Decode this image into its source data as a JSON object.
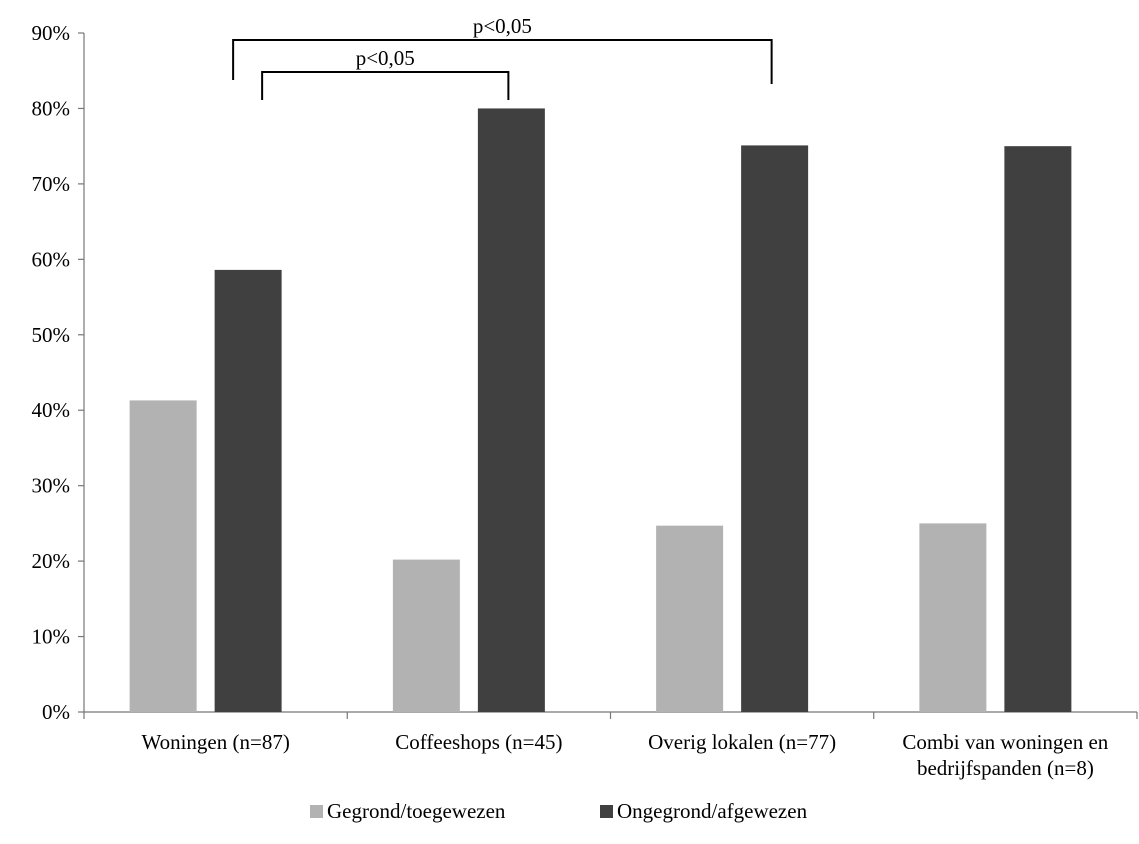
{
  "chart_data": {
    "type": "bar",
    "categories": [
      [
        "Woningen (n=87)"
      ],
      [
        "Coffeeshops (n=45)"
      ],
      [
        "Overig lokalen (n=77)"
      ],
      [
        "Combi van woningen en",
        "bedrijfspanden (n=8)"
      ]
    ],
    "series": [
      {
        "name": "Gegrond/toegewezen",
        "color": "#b2b2b2",
        "values": [
          41.3,
          20.2,
          24.7,
          25.0
        ]
      },
      {
        "name": "Ongegrond/afgewezen",
        "color": "#404040",
        "values": [
          58.6,
          80.0,
          75.1,
          75.0
        ]
      }
    ],
    "ylim": [
      0,
      90
    ],
    "y_ticks": [
      0,
      10,
      20,
      30,
      40,
      50,
      60,
      70,
      80,
      90
    ],
    "y_tick_labels": [
      "0%",
      "10%",
      "20%",
      "30%",
      "40%",
      "50%",
      "60%",
      "70%",
      "80%",
      "90%"
    ],
    "grid": false,
    "legend_position": "bottom",
    "significance": [
      {
        "label": "p<0,05",
        "from": "Woningen (n=87) / Ongegrond/afgewezen",
        "to": "Overig lokalen (n=77) / Ongegrond/afgewezen"
      },
      {
        "label": "p<0,05",
        "from": "Woningen (n=87) / Ongegrond/afgewezen",
        "to": "Coffeeshops (n=45) / Ongegrond/afgewezen"
      }
    ]
  }
}
